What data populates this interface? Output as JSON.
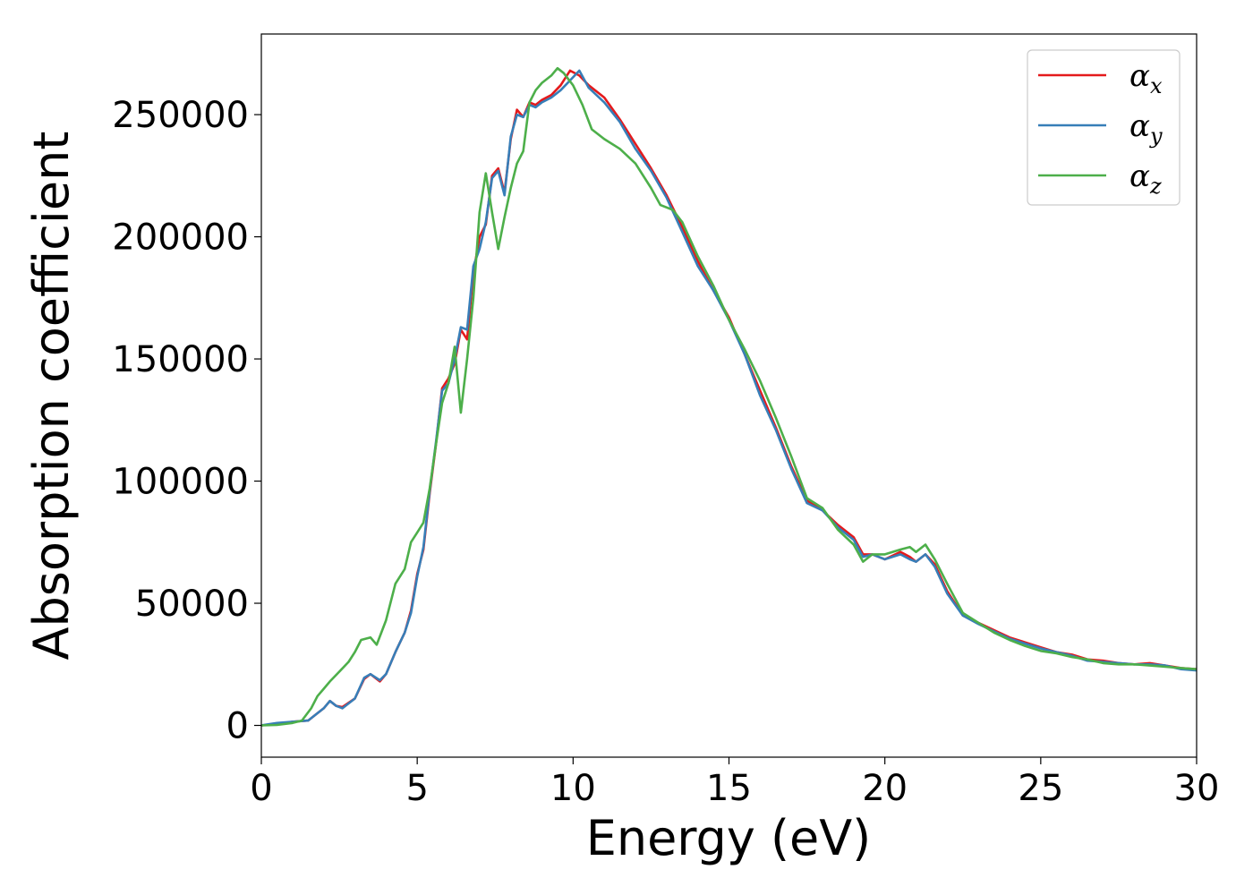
{
  "chart_data": {
    "type": "line",
    "title": "",
    "xlabel": "Energy (eV)",
    "ylabel": "Absorption coefficient",
    "xlim": [
      0,
      30
    ],
    "ylim": [
      -13000,
      283000
    ],
    "xticks": [
      0,
      5,
      10,
      15,
      20,
      25,
      30
    ],
    "xtick_labels": [
      "0",
      "5",
      "10",
      "15",
      "20",
      "25",
      "30"
    ],
    "yticks": [
      0,
      50000,
      100000,
      150000,
      200000,
      250000
    ],
    "ytick_labels": [
      "0",
      "50000",
      "100000",
      "150000",
      "200000",
      "250000"
    ],
    "grid": false,
    "legend_position": "top-right",
    "series": [
      {
        "name": "α",
        "subscript": "x",
        "color": "#e41a1c",
        "points": [
          [
            0,
            0
          ],
          [
            0.5,
            500
          ],
          [
            1.0,
            1500
          ],
          [
            1.5,
            2000
          ],
          [
            1.8,
            5000
          ],
          [
            2.0,
            7000
          ],
          [
            2.2,
            10000
          ],
          [
            2.4,
            8000
          ],
          [
            2.6,
            7500
          ],
          [
            3.0,
            11000
          ],
          [
            3.3,
            19000
          ],
          [
            3.5,
            21000
          ],
          [
            3.8,
            18000
          ],
          [
            4.0,
            21000
          ],
          [
            4.3,
            30000
          ],
          [
            4.6,
            38000
          ],
          [
            4.8,
            47000
          ],
          [
            5.0,
            62000
          ],
          [
            5.2,
            72000
          ],
          [
            5.4,
            95000
          ],
          [
            5.6,
            115000
          ],
          [
            5.8,
            138000
          ],
          [
            6.0,
            142000
          ],
          [
            6.2,
            148000
          ],
          [
            6.4,
            162000
          ],
          [
            6.6,
            158000
          ],
          [
            6.8,
            185000
          ],
          [
            7.0,
            200000
          ],
          [
            7.2,
            205000
          ],
          [
            7.4,
            225000
          ],
          [
            7.6,
            228000
          ],
          [
            7.8,
            218000
          ],
          [
            8.0,
            240000
          ],
          [
            8.2,
            252000
          ],
          [
            8.4,
            249000
          ],
          [
            8.6,
            255000
          ],
          [
            8.8,
            254000
          ],
          [
            9.0,
            256000
          ],
          [
            9.3,
            258000
          ],
          [
            9.6,
            262000
          ],
          [
            9.9,
            268000
          ],
          [
            10.2,
            266000
          ],
          [
            10.5,
            262000
          ],
          [
            11.0,
            257000
          ],
          [
            11.5,
            248000
          ],
          [
            12.0,
            238000
          ],
          [
            12.5,
            228000
          ],
          [
            13.0,
            217000
          ],
          [
            13.5,
            204000
          ],
          [
            14.0,
            190000
          ],
          [
            14.5,
            178000
          ],
          [
            15.0,
            167000
          ],
          [
            15.5,
            152000
          ],
          [
            16.0,
            137000
          ],
          [
            16.5,
            122000
          ],
          [
            17.0,
            106000
          ],
          [
            17.5,
            92000
          ],
          [
            18.0,
            88000
          ],
          [
            18.5,
            82000
          ],
          [
            19.0,
            77000
          ],
          [
            19.3,
            70000
          ],
          [
            19.6,
            70000
          ],
          [
            20.0,
            68000
          ],
          [
            20.5,
            71000
          ],
          [
            20.8,
            69000
          ],
          [
            21.0,
            67000
          ],
          [
            21.3,
            70000
          ],
          [
            21.6,
            66000
          ],
          [
            22.0,
            55000
          ],
          [
            22.5,
            45000
          ],
          [
            23.0,
            42000
          ],
          [
            23.5,
            39000
          ],
          [
            24.0,
            36000
          ],
          [
            24.5,
            34000
          ],
          [
            25.0,
            32000
          ],
          [
            25.5,
            30000
          ],
          [
            26.0,
            29000
          ],
          [
            26.5,
            27000
          ],
          [
            27.0,
            26500
          ],
          [
            27.5,
            25500
          ],
          [
            28.0,
            25000
          ],
          [
            28.5,
            25500
          ],
          [
            29.0,
            24500
          ],
          [
            29.5,
            23500
          ],
          [
            30.0,
            23000
          ]
        ]
      },
      {
        "name": "α",
        "subscript": "y",
        "color": "#377eb8",
        "points": [
          [
            0,
            0
          ],
          [
            0.5,
            1000
          ],
          [
            1.0,
            1500
          ],
          [
            1.5,
            2000
          ],
          [
            1.8,
            5000
          ],
          [
            2.0,
            7000
          ],
          [
            2.2,
            10000
          ],
          [
            2.4,
            8000
          ],
          [
            2.6,
            7000
          ],
          [
            3.0,
            11000
          ],
          [
            3.3,
            19500
          ],
          [
            3.5,
            21000
          ],
          [
            3.8,
            18500
          ],
          [
            4.0,
            21000
          ],
          [
            4.3,
            30000
          ],
          [
            4.6,
            38000
          ],
          [
            4.8,
            46000
          ],
          [
            5.0,
            61000
          ],
          [
            5.2,
            73000
          ],
          [
            5.4,
            96000
          ],
          [
            5.6,
            116000
          ],
          [
            5.8,
            137000
          ],
          [
            6.0,
            140000
          ],
          [
            6.2,
            150000
          ],
          [
            6.4,
            163000
          ],
          [
            6.6,
            162000
          ],
          [
            6.8,
            188000
          ],
          [
            7.0,
            195000
          ],
          [
            7.2,
            206000
          ],
          [
            7.4,
            224000
          ],
          [
            7.6,
            227000
          ],
          [
            7.8,
            217000
          ],
          [
            8.0,
            241000
          ],
          [
            8.2,
            250000
          ],
          [
            8.4,
            249000
          ],
          [
            8.6,
            254000
          ],
          [
            8.8,
            253000
          ],
          [
            9.0,
            255000
          ],
          [
            9.3,
            257000
          ],
          [
            9.6,
            260000
          ],
          [
            9.9,
            264000
          ],
          [
            10.2,
            268000
          ],
          [
            10.5,
            261000
          ],
          [
            11.0,
            255000
          ],
          [
            11.5,
            247000
          ],
          [
            12.0,
            236000
          ],
          [
            12.5,
            227000
          ],
          [
            13.0,
            216000
          ],
          [
            13.5,
            202000
          ],
          [
            14.0,
            188000
          ],
          [
            14.5,
            178000
          ],
          [
            15.0,
            166000
          ],
          [
            15.5,
            152000
          ],
          [
            16.0,
            135000
          ],
          [
            16.5,
            121000
          ],
          [
            17.0,
            105000
          ],
          [
            17.5,
            91000
          ],
          [
            18.0,
            88000
          ],
          [
            18.5,
            81000
          ],
          [
            19.0,
            76000
          ],
          [
            19.3,
            69000
          ],
          [
            19.6,
            70000
          ],
          [
            20.0,
            68000
          ],
          [
            20.5,
            70000
          ],
          [
            20.8,
            68000
          ],
          [
            21.0,
            67000
          ],
          [
            21.3,
            70000
          ],
          [
            21.6,
            65000
          ],
          [
            22.0,
            54000
          ],
          [
            22.5,
            45000
          ],
          [
            23.0,
            41500
          ],
          [
            23.5,
            38500
          ],
          [
            24.0,
            35500
          ],
          [
            24.5,
            33500
          ],
          [
            25.0,
            31500
          ],
          [
            25.5,
            30000
          ],
          [
            26.0,
            28500
          ],
          [
            26.5,
            26500
          ],
          [
            27.0,
            26000
          ],
          [
            27.5,
            25500
          ],
          [
            28.0,
            25000
          ],
          [
            28.5,
            25000
          ],
          [
            29.0,
            24500
          ],
          [
            29.5,
            23000
          ],
          [
            30.0,
            22500
          ]
        ]
      },
      {
        "name": "α",
        "subscript": "z",
        "color": "#4daf4a",
        "points": [
          [
            0,
            0
          ],
          [
            0.5,
            200
          ],
          [
            1.0,
            1000
          ],
          [
            1.3,
            2000
          ],
          [
            1.6,
            7000
          ],
          [
            1.8,
            12000
          ],
          [
            2.0,
            15000
          ],
          [
            2.2,
            18000
          ],
          [
            2.5,
            22000
          ],
          [
            2.8,
            26000
          ],
          [
            3.0,
            30000
          ],
          [
            3.2,
            35000
          ],
          [
            3.5,
            36000
          ],
          [
            3.7,
            33000
          ],
          [
            4.0,
            43000
          ],
          [
            4.3,
            58000
          ],
          [
            4.6,
            64000
          ],
          [
            4.8,
            75000
          ],
          [
            5.0,
            79000
          ],
          [
            5.2,
            83000
          ],
          [
            5.4,
            97000
          ],
          [
            5.6,
            115000
          ],
          [
            5.8,
            132000
          ],
          [
            6.0,
            140000
          ],
          [
            6.2,
            155000
          ],
          [
            6.4,
            128000
          ],
          [
            6.6,
            150000
          ],
          [
            6.8,
            175000
          ],
          [
            7.0,
            210000
          ],
          [
            7.2,
            226000
          ],
          [
            7.4,
            210000
          ],
          [
            7.6,
            195000
          ],
          [
            7.8,
            208000
          ],
          [
            8.0,
            220000
          ],
          [
            8.2,
            230000
          ],
          [
            8.4,
            235000
          ],
          [
            8.6,
            255000
          ],
          [
            8.8,
            260000
          ],
          [
            9.0,
            263000
          ],
          [
            9.3,
            266000
          ],
          [
            9.5,
            269000
          ],
          [
            9.7,
            267000
          ],
          [
            10.0,
            262000
          ],
          [
            10.3,
            254000
          ],
          [
            10.6,
            244000
          ],
          [
            11.0,
            240000
          ],
          [
            11.5,
            236000
          ],
          [
            12.0,
            230000
          ],
          [
            12.5,
            220000
          ],
          [
            12.8,
            213000
          ],
          [
            13.2,
            211000
          ],
          [
            13.5,
            206000
          ],
          [
            14.0,
            192000
          ],
          [
            14.5,
            180000
          ],
          [
            15.0,
            166000
          ],
          [
            15.5,
            154000
          ],
          [
            16.0,
            141000
          ],
          [
            16.5,
            126000
          ],
          [
            17.0,
            110000
          ],
          [
            17.5,
            93000
          ],
          [
            18.0,
            89000
          ],
          [
            18.5,
            80000
          ],
          [
            19.0,
            74000
          ],
          [
            19.3,
            67000
          ],
          [
            19.6,
            70000
          ],
          [
            20.0,
            70000
          ],
          [
            20.5,
            72000
          ],
          [
            20.8,
            73000
          ],
          [
            21.0,
            71000
          ],
          [
            21.3,
            74000
          ],
          [
            21.6,
            68000
          ],
          [
            22.0,
            58000
          ],
          [
            22.5,
            46000
          ],
          [
            23.0,
            42000
          ],
          [
            23.5,
            38000
          ],
          [
            24.0,
            35000
          ],
          [
            24.5,
            32500
          ],
          [
            25.0,
            30500
          ],
          [
            25.5,
            29500
          ],
          [
            26.0,
            28000
          ],
          [
            26.5,
            27000
          ],
          [
            27.0,
            25500
          ],
          [
            27.5,
            25000
          ],
          [
            28.0,
            25000
          ],
          [
            28.5,
            24500
          ],
          [
            29.0,
            24000
          ],
          [
            29.5,
            23500
          ],
          [
            30.0,
            23000
          ]
        ]
      }
    ]
  }
}
